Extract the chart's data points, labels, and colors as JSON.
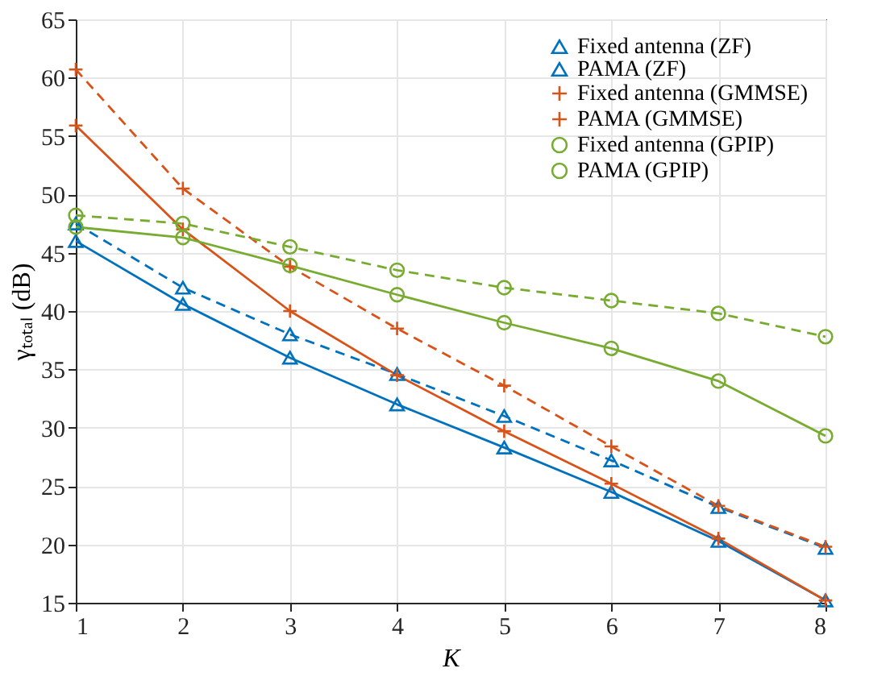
{
  "chart_data": {
    "type": "line",
    "xlabel": "K",
    "ylabel": "γₜₒₜₐₗ (dB)",
    "x": [
      1,
      2,
      3,
      4,
      5,
      6,
      7,
      8
    ],
    "xlim": [
      1,
      8
    ],
    "xticks": [
      1,
      2,
      3,
      4,
      5,
      6,
      7,
      8
    ],
    "ylim": [
      15,
      65
    ],
    "yticks": [
      15,
      20,
      25,
      30,
      35,
      40,
      45,
      50,
      55,
      60,
      65
    ],
    "grid": true,
    "legend": "top right",
    "series": [
      {
        "name": "Fixed antenna (ZF)",
        "color": "#0072bd",
        "marker": "triangle",
        "line_style": "solid",
        "values": [
          46,
          40.6,
          36,
          32,
          28.3,
          24.5,
          20.3,
          15.2
        ]
      },
      {
        "name": "PAMA (ZF)",
        "color": "#0072bd",
        "marker": "triangle",
        "line_style": "dashed",
        "values": [
          47.5,
          42,
          38,
          34.6,
          31,
          27.2,
          23.2,
          19.7
        ]
      },
      {
        "name": "Fixed antenna (GMMSE)",
        "color": "#d95319",
        "marker": "cross",
        "line_style": "solid",
        "values": [
          55.9,
          47,
          40,
          34.5,
          29.7,
          25.2,
          20.5,
          15.2
        ]
      },
      {
        "name": "PAMA (GMMSE)",
        "color": "#d95319",
        "marker": "cross",
        "line_style": "dashed",
        "values": [
          60.7,
          50.5,
          43.8,
          38.5,
          33.6,
          28.4,
          23.3,
          19.8
        ]
      },
      {
        "name": "Fixed antenna (GPIP)",
        "color": "#77ac30",
        "marker": "circle",
        "line_style": "solid",
        "values": [
          47.2,
          46.3,
          43.9,
          41.4,
          39,
          36.8,
          34,
          29.3
        ]
      },
      {
        "name": "PAMA (GPIP)",
        "color": "#77ac30",
        "marker": "circle",
        "line_style": "dashed",
        "values": [
          48.2,
          47.5,
          45.5,
          43.5,
          42,
          40.9,
          39.8,
          37.8
        ]
      }
    ]
  }
}
